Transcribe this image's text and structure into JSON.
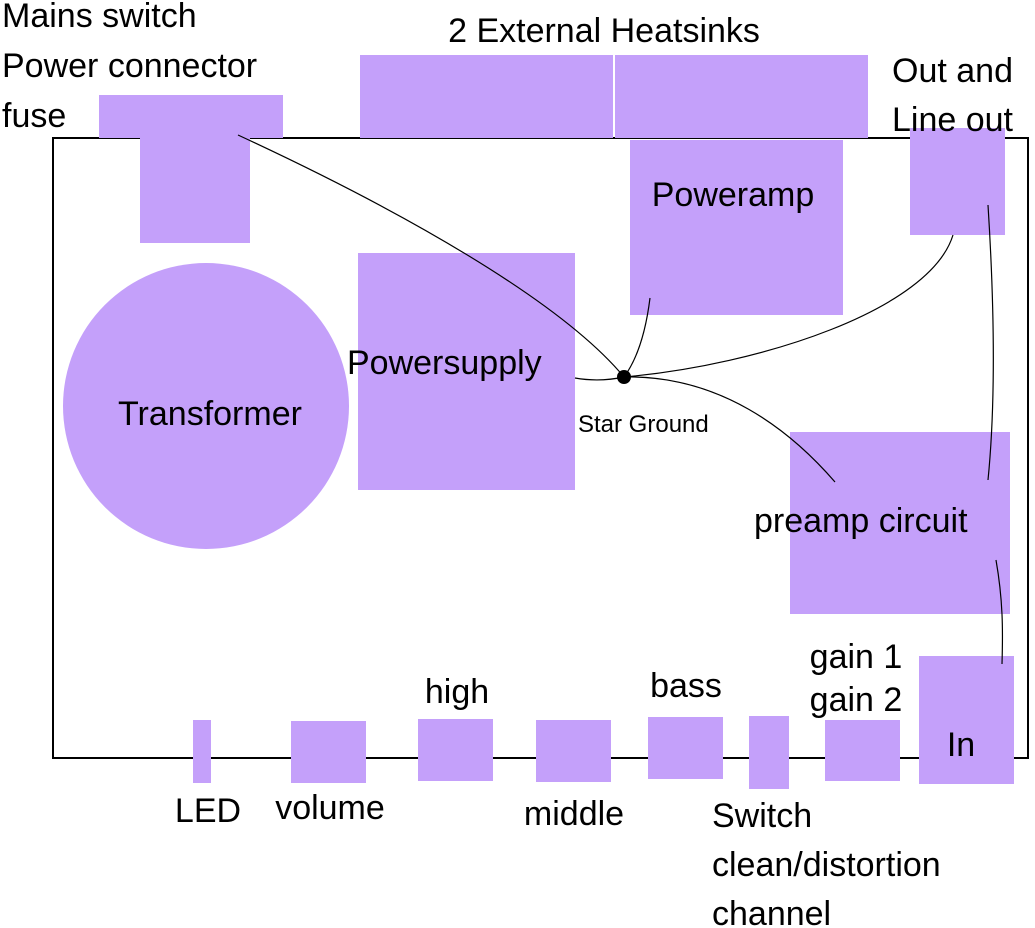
{
  "heatsinks_label": "2 External Heatsinks",
  "mains_label": {
    "line1": "Mains switch",
    "line2": "Power connector",
    "line3": "fuse"
  },
  "output_label": {
    "line1": "Out and",
    "line2": "Line out"
  },
  "blocks": {
    "transformer": "Transformer",
    "powersupply": "Powersupply",
    "poweramp": "Poweramp",
    "preamp": "preamp circuit",
    "input": "In"
  },
  "star_ground": "Star Ground",
  "controls": {
    "led": "LED",
    "volume": "volume",
    "high": "high",
    "middle": "middle",
    "bass": "bass",
    "switch": {
      "line1": "Switch",
      "line2": "clean/distortion",
      "line3": "channel"
    },
    "gain": {
      "line1": "gain 1",
      "line2": "gain 2"
    }
  },
  "colors": {
    "component_fill": "#c4a0fa",
    "outline": "#000000"
  }
}
